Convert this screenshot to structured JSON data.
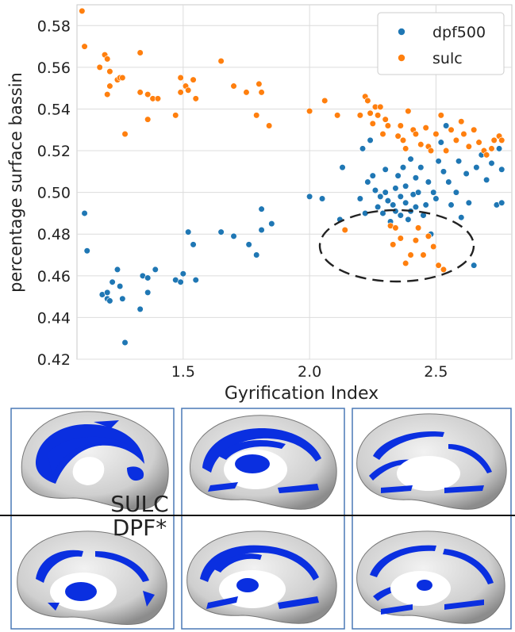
{
  "chart_data": {
    "type": "scatter",
    "title": "",
    "xlabel": "Gyrification Index",
    "ylabel": "percentage surface bassin",
    "xlim": [
      1.08,
      2.8
    ],
    "ylim": [
      0.42,
      0.59
    ],
    "xticks": [
      1.5,
      2.0,
      2.5
    ],
    "xtick_labels": [
      "1.5",
      "2.0",
      "2.5"
    ],
    "yticks": [
      0.42,
      0.44,
      0.46,
      0.48,
      0.5,
      0.52,
      0.54,
      0.56,
      0.58
    ],
    "ytick_labels": [
      "0.42",
      "0.44",
      "0.46",
      "0.48",
      "0.50",
      "0.52",
      "0.54",
      "0.56",
      "0.58"
    ],
    "grid": true,
    "legend_position": "top-right",
    "annotation": "dashed ellipse around the overlapping points near x≈2.35, y≈0.475",
    "series": [
      {
        "name": "dpf500",
        "color": "#1f77b4",
        "points": [
          [
            1.11,
            0.49
          ],
          [
            1.12,
            0.472
          ],
          [
            1.18,
            0.451
          ],
          [
            1.2,
            0.452
          ],
          [
            1.2,
            0.449
          ],
          [
            1.21,
            0.448
          ],
          [
            1.22,
            0.457
          ],
          [
            1.24,
            0.463
          ],
          [
            1.25,
            0.455
          ],
          [
            1.26,
            0.449
          ],
          [
            1.27,
            0.428
          ],
          [
            1.33,
            0.444
          ],
          [
            1.34,
            0.46
          ],
          [
            1.36,
            0.459
          ],
          [
            1.36,
            0.452
          ],
          [
            1.39,
            0.463
          ],
          [
            1.47,
            0.458
          ],
          [
            1.49,
            0.457
          ],
          [
            1.5,
            0.461
          ],
          [
            1.52,
            0.481
          ],
          [
            1.54,
            0.475
          ],
          [
            1.55,
            0.458
          ],
          [
            1.65,
            0.481
          ],
          [
            1.7,
            0.479
          ],
          [
            1.76,
            0.475
          ],
          [
            1.79,
            0.47
          ],
          [
            1.81,
            0.482
          ],
          [
            1.81,
            0.492
          ],
          [
            1.85,
            0.485
          ],
          [
            2.0,
            0.498
          ],
          [
            2.05,
            0.497
          ],
          [
            2.12,
            0.487
          ],
          [
            2.13,
            0.512
          ],
          [
            2.2,
            0.497
          ],
          [
            2.21,
            0.521
          ],
          [
            2.22,
            0.49
          ],
          [
            2.23,
            0.505
          ],
          [
            2.24,
            0.525
          ],
          [
            2.25,
            0.508
          ],
          [
            2.26,
            0.501
          ],
          [
            2.27,
            0.493
          ],
          [
            2.28,
            0.498
          ],
          [
            2.29,
            0.49
          ],
          [
            2.3,
            0.5
          ],
          [
            2.3,
            0.511
          ],
          [
            2.31,
            0.496
          ],
          [
            2.32,
            0.486
          ],
          [
            2.33,
            0.494
          ],
          [
            2.34,
            0.502
          ],
          [
            2.34,
            0.491
          ],
          [
            2.35,
            0.508
          ],
          [
            2.36,
            0.498
          ],
          [
            2.36,
            0.489
          ],
          [
            2.37,
            0.512
          ],
          [
            2.38,
            0.495
          ],
          [
            2.38,
            0.503
          ],
          [
            2.39,
            0.487
          ],
          [
            2.4,
            0.491
          ],
          [
            2.4,
            0.516
          ],
          [
            2.41,
            0.499
          ],
          [
            2.42,
            0.493
          ],
          [
            2.42,
            0.507
          ],
          [
            2.43,
            0.5
          ],
          [
            2.44,
            0.512
          ],
          [
            2.45,
            0.489
          ],
          [
            2.46,
            0.494
          ],
          [
            2.47,
            0.505
          ],
          [
            2.48,
            0.48
          ],
          [
            2.49,
            0.5
          ],
          [
            2.5,
            0.497
          ],
          [
            2.51,
            0.515
          ],
          [
            2.52,
            0.524
          ],
          [
            2.53,
            0.51
          ],
          [
            2.54,
            0.532
          ],
          [
            2.55,
            0.505
          ],
          [
            2.56,
            0.494
          ],
          [
            2.58,
            0.5
          ],
          [
            2.59,
            0.515
          ],
          [
            2.6,
            0.488
          ],
          [
            2.62,
            0.509
          ],
          [
            2.63,
            0.495
          ],
          [
            2.65,
            0.465
          ],
          [
            2.66,
            0.512
          ],
          [
            2.68,
            0.518
          ],
          [
            2.7,
            0.506
          ],
          [
            2.72,
            0.514
          ],
          [
            2.74,
            0.494
          ],
          [
            2.75,
            0.521
          ],
          [
            2.76,
            0.511
          ],
          [
            2.76,
            0.495
          ]
        ]
      },
      {
        "name": "sulc",
        "color": "#ff7f0e",
        "points": [
          [
            1.1,
            0.587
          ],
          [
            1.11,
            0.57
          ],
          [
            1.17,
            0.56
          ],
          [
            1.19,
            0.566
          ],
          [
            1.2,
            0.564
          ],
          [
            1.21,
            0.558
          ],
          [
            1.21,
            0.551
          ],
          [
            1.2,
            0.547
          ],
          [
            1.24,
            0.554
          ],
          [
            1.25,
            0.555
          ],
          [
            1.26,
            0.555
          ],
          [
            1.27,
            0.528
          ],
          [
            1.33,
            0.567
          ],
          [
            1.33,
            0.548
          ],
          [
            1.36,
            0.547
          ],
          [
            1.36,
            0.535
          ],
          [
            1.38,
            0.545
          ],
          [
            1.4,
            0.545
          ],
          [
            1.47,
            0.537
          ],
          [
            1.49,
            0.548
          ],
          [
            1.49,
            0.555
          ],
          [
            1.51,
            0.551
          ],
          [
            1.52,
            0.549
          ],
          [
            1.54,
            0.554
          ],
          [
            1.55,
            0.545
          ],
          [
            1.65,
            0.563
          ],
          [
            1.7,
            0.551
          ],
          [
            1.75,
            0.548
          ],
          [
            1.79,
            0.537
          ],
          [
            1.8,
            0.552
          ],
          [
            1.81,
            0.548
          ],
          [
            1.84,
            0.532
          ],
          [
            2.0,
            0.539
          ],
          [
            2.06,
            0.544
          ],
          [
            2.11,
            0.537
          ],
          [
            2.14,
            0.482
          ],
          [
            2.2,
            0.537
          ],
          [
            2.22,
            0.546
          ],
          [
            2.23,
            0.544
          ],
          [
            2.24,
            0.538
          ],
          [
            2.25,
            0.533
          ],
          [
            2.26,
            0.541
          ],
          [
            2.27,
            0.537
          ],
          [
            2.28,
            0.541
          ],
          [
            2.29,
            0.528
          ],
          [
            2.3,
            0.535
          ],
          [
            2.31,
            0.532
          ],
          [
            2.32,
            0.484
          ],
          [
            2.33,
            0.475
          ],
          [
            2.34,
            0.483
          ],
          [
            2.35,
            0.527
          ],
          [
            2.36,
            0.532
          ],
          [
            2.36,
            0.478
          ],
          [
            2.37,
            0.525
          ],
          [
            2.38,
            0.521
          ],
          [
            2.38,
            0.466
          ],
          [
            2.39,
            0.539
          ],
          [
            2.4,
            0.47
          ],
          [
            2.41,
            0.53
          ],
          [
            2.42,
            0.477
          ],
          [
            2.42,
            0.528
          ],
          [
            2.43,
            0.483
          ],
          [
            2.44,
            0.523
          ],
          [
            2.45,
            0.47
          ],
          [
            2.46,
            0.531
          ],
          [
            2.47,
            0.479
          ],
          [
            2.47,
            0.522
          ],
          [
            2.48,
            0.52
          ],
          [
            2.49,
            0.474
          ],
          [
            2.5,
            0.528
          ],
          [
            2.51,
            0.465
          ],
          [
            2.52,
            0.537
          ],
          [
            2.53,
            0.463
          ],
          [
            2.54,
            0.52
          ],
          [
            2.56,
            0.53
          ],
          [
            2.58,
            0.525
          ],
          [
            2.6,
            0.534
          ],
          [
            2.61,
            0.528
          ],
          [
            2.63,
            0.522
          ],
          [
            2.65,
            0.53
          ],
          [
            2.67,
            0.524
          ],
          [
            2.69,
            0.52
          ],
          [
            2.7,
            0.518
          ],
          [
            2.72,
            0.521
          ],
          [
            2.73,
            0.525
          ],
          [
            2.75,
            0.527
          ],
          [
            2.76,
            0.525
          ]
        ]
      }
    ]
  },
  "brain_panel": {
    "top_label": "SULC",
    "bottom_label": "DPF*",
    "fill_color": "#0a2fe0",
    "frame_color": "#4a79b5"
  }
}
